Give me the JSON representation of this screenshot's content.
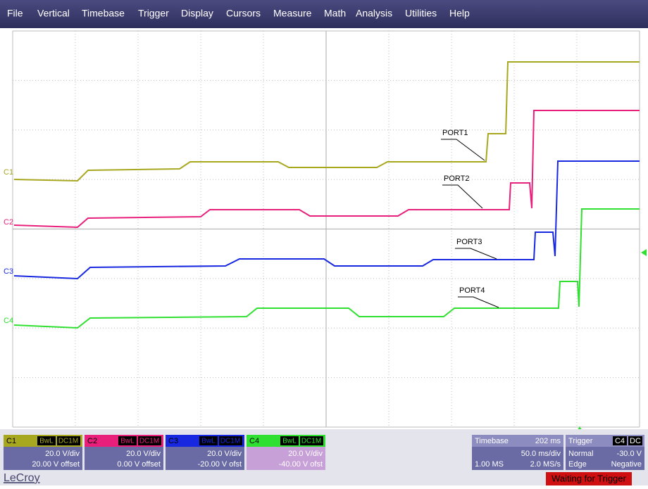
{
  "menu": [
    "File",
    "Vertical",
    "Timebase",
    "Trigger",
    "Display",
    "Cursors",
    "Measure",
    "Math",
    "Analysis",
    "Utilities",
    "Help"
  ],
  "annotations": [
    "PORT1",
    "PORT2",
    "PORT3",
    "PORT4"
  ],
  "channels": [
    {
      "name": "C1",
      "bwl": "BwL",
      "coupling": "DC1M",
      "scale": "20.0 V/div",
      "offset": "20.00 V offset"
    },
    {
      "name": "C2",
      "bwl": "BwL",
      "coupling": "DC1M",
      "scale": "20.0 V/div",
      "offset": "0.00 V offset"
    },
    {
      "name": "C3",
      "bwl": "BwL",
      "coupling": "DC1M",
      "scale": "20.0 V/div",
      "offset": "-20.00 V ofst"
    },
    {
      "name": "C4",
      "bwl": "BwL",
      "coupling": "DC1M",
      "scale": "20.0 V/div",
      "offset": "-40.00 V ofst"
    }
  ],
  "timebase": {
    "title": "Timebase",
    "delay": "202 ms",
    "scale": "50.0 ms/div",
    "memory": "1.00 MS",
    "rate": "2.0 MS/s"
  },
  "trigger": {
    "title": "Trigger",
    "source": "C4",
    "coupling": "DC",
    "mode": "Normal",
    "level": "-30.0 V",
    "type": "Edge",
    "slope": "Negative"
  },
  "brand": "LeCroy",
  "status": "Waiting for Trigger"
}
